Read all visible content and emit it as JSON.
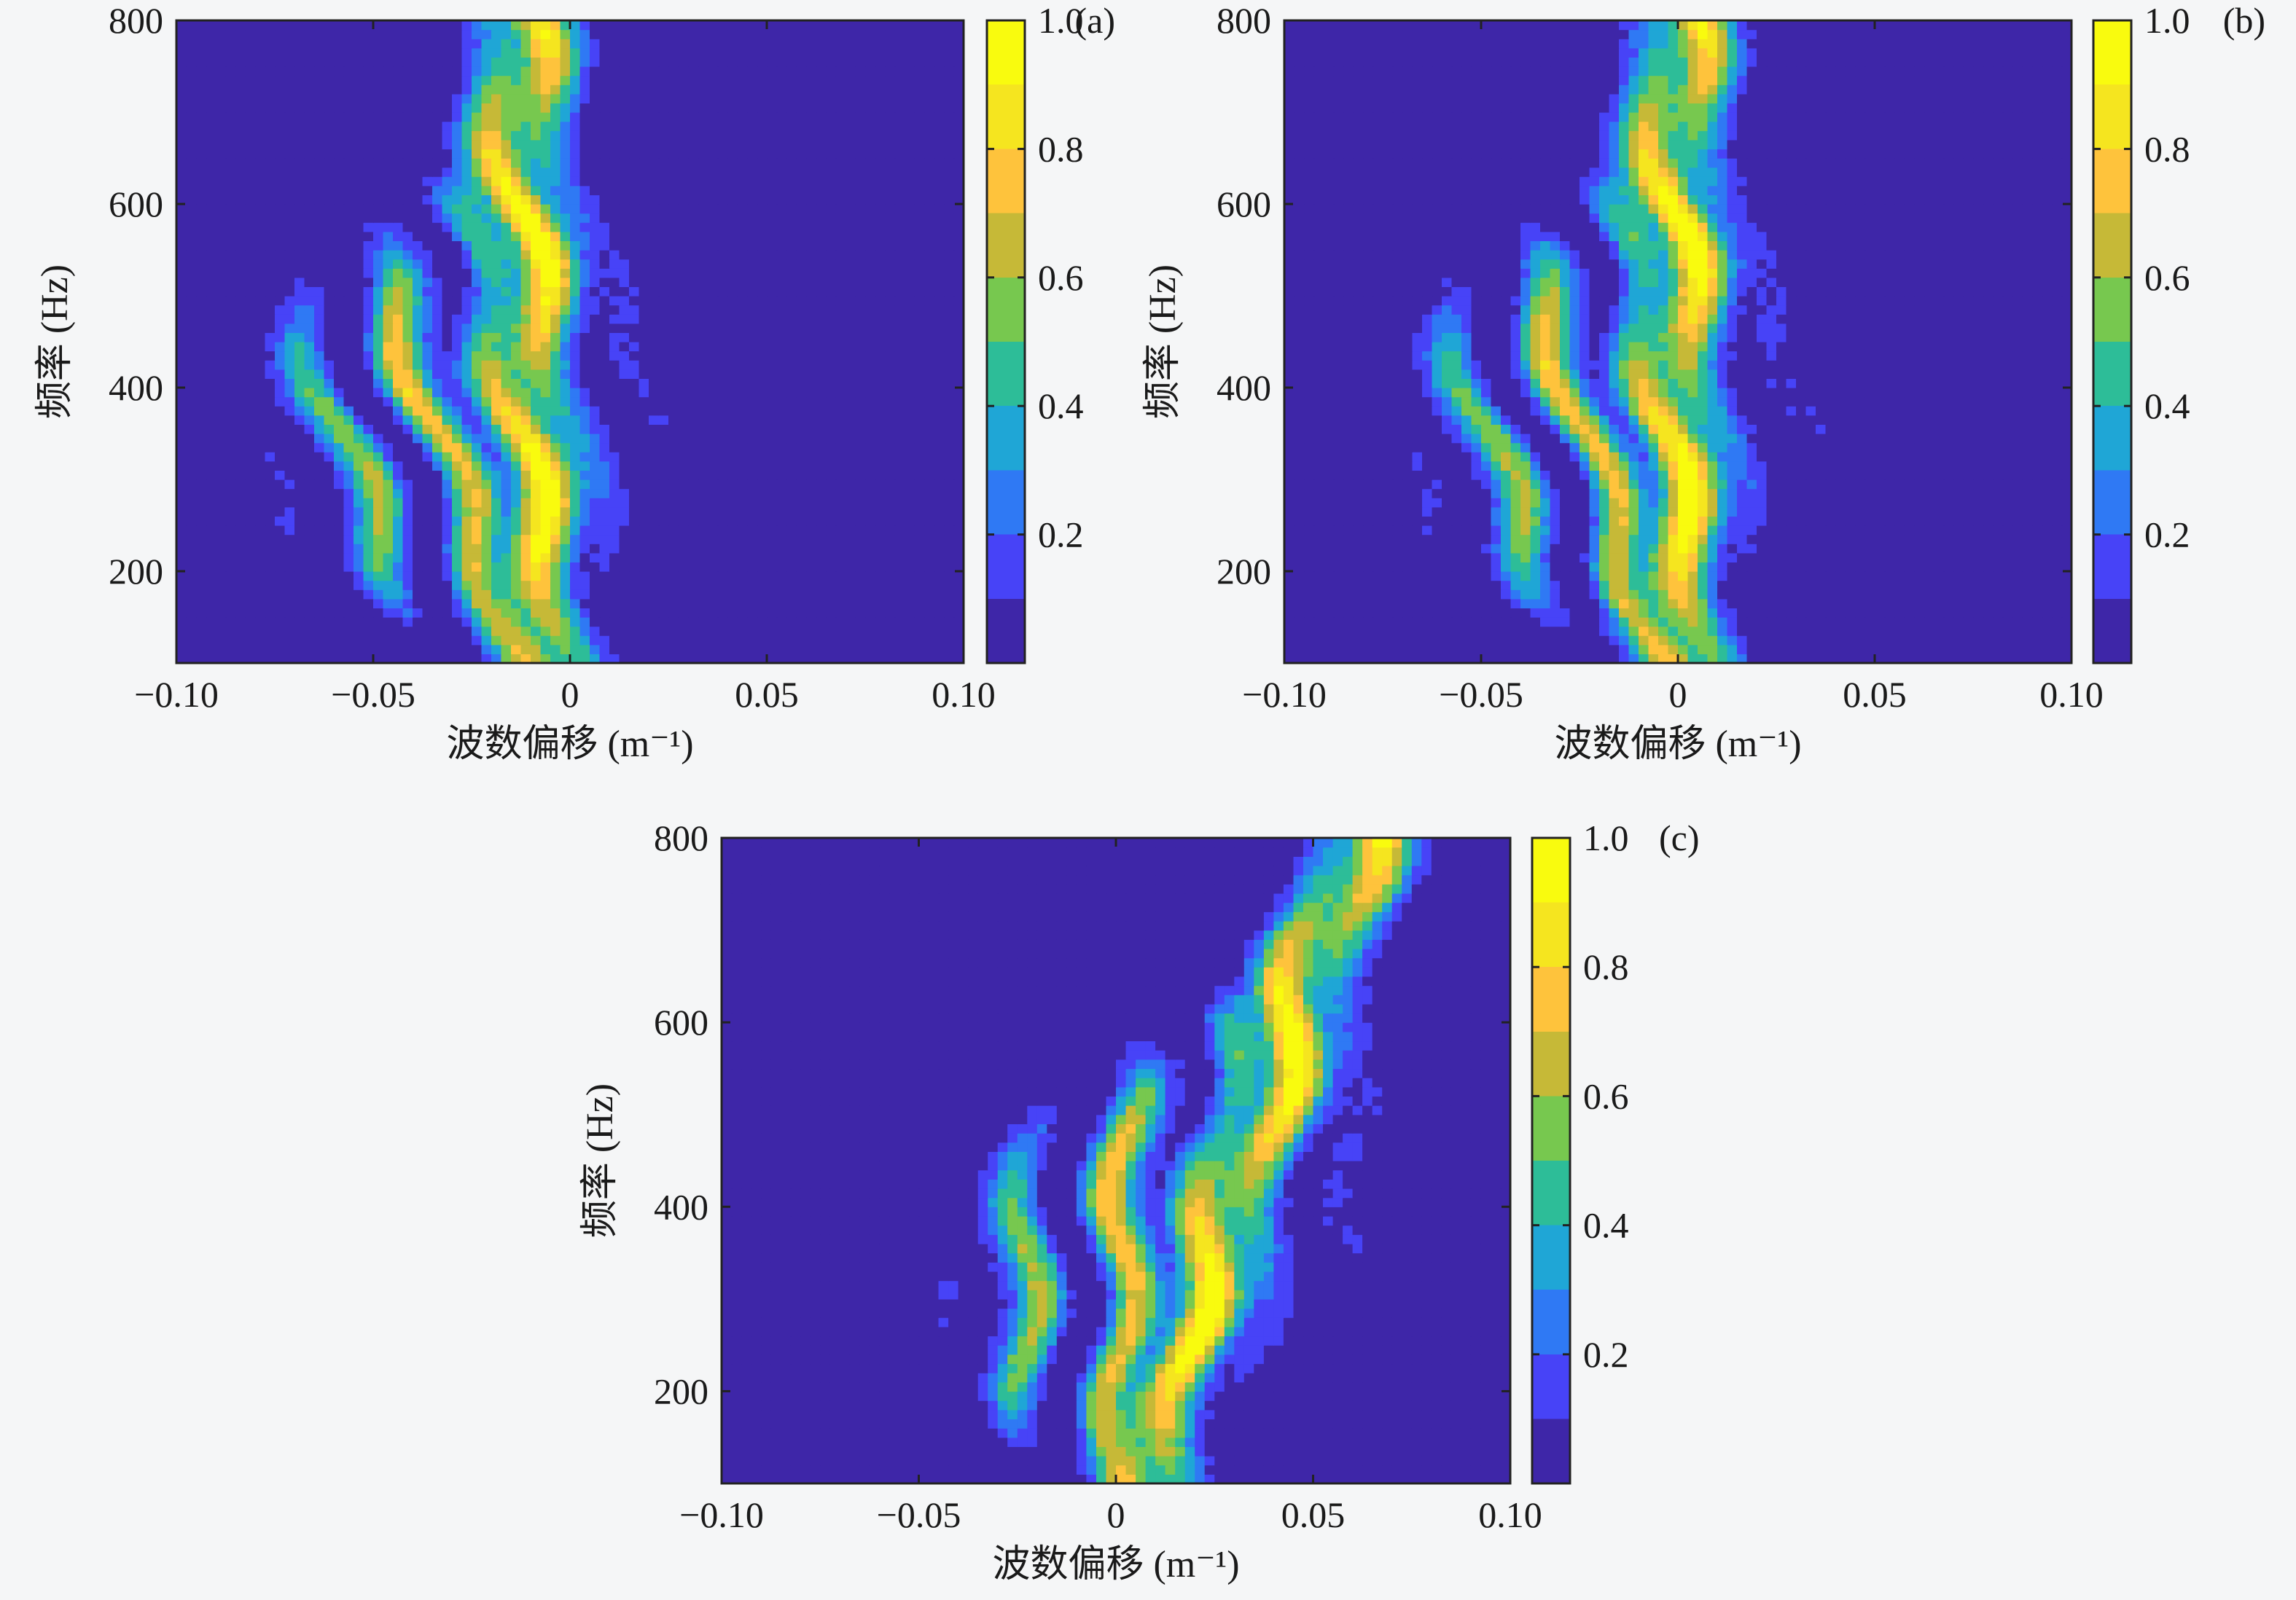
{
  "colormap": [
    "#3e26a8",
    "#4743f7",
    "#2f79f4",
    "#1fa6d6",
    "#2dbd98",
    "#77c84f",
    "#c6b937",
    "#fec33c",
    "#f5e51f",
    "#f9fb0e"
  ],
  "background_color": "#f5f6f7",
  "colorbar": {
    "range": [
      0,
      1.0
    ],
    "tick_values": [
      0.2,
      0.4,
      0.6,
      0.8,
      1.0
    ],
    "tick_labels": [
      "0.2",
      "0.4",
      "0.6",
      "0.8",
      "1.0"
    ]
  },
  "chart_data": [
    {
      "type": "heatmap",
      "panel_label": "(a)",
      "xlabel": "波数偏移 (m⁻¹)",
      "ylabel": "频率 (Hz)",
      "xlim": [
        -0.1,
        0.1
      ],
      "ylim": [
        100,
        800
      ],
      "x_ticks": [
        -0.1,
        -0.05,
        0,
        0.05,
        0.1
      ],
      "x_tick_labels": [
        "−0.10",
        "−0.05",
        "0",
        "0.05",
        "0.10"
      ],
      "y_ticks": [
        200,
        400,
        600,
        800
      ],
      "y_tick_labels": [
        "200",
        "400",
        "600",
        "800"
      ],
      "colorbar_range": [
        0,
        1.0
      ],
      "ridge_center_at_100Hz": -0.008,
      "ridge_center_at_800Hz": -0.013,
      "approx_peak_wavenumber_by_frequency": [
        {
          "frequency": 130,
          "wavenumber": -0.01
        },
        {
          "frequency": 290,
          "wavenumber": -0.05
        },
        {
          "frequency": 400,
          "wavenumber": -0.07
        },
        {
          "frequency": 520,
          "wavenumber": -0.025
        },
        {
          "frequency": 700,
          "wavenumber": -0.015
        }
      ]
    },
    {
      "type": "heatmap",
      "panel_label": "(b)",
      "xlabel": "波数偏移 (m⁻¹)",
      "ylabel": "频率 (Hz)",
      "xlim": [
        -0.1,
        0.1
      ],
      "ylim": [
        100,
        800
      ],
      "x_ticks": [
        -0.1,
        -0.05,
        0,
        0.05,
        0.1
      ],
      "x_tick_labels": [
        "−0.10",
        "−0.05",
        "0",
        "0.05",
        "0.10"
      ],
      "y_ticks": [
        200,
        400,
        600,
        800
      ],
      "y_tick_labels": [
        "200",
        "400",
        "600",
        "800"
      ],
      "colorbar_range": [
        0,
        1.0
      ],
      "ridge_center_at_100Hz": 0.0,
      "ridge_center_at_800Hz": 0.0,
      "approx_peak_wavenumber_by_frequency": [
        {
          "frequency": 130,
          "wavenumber": 0.0
        },
        {
          "frequency": 290,
          "wavenumber": -0.04
        },
        {
          "frequency": 400,
          "wavenumber": -0.06
        },
        {
          "frequency": 520,
          "wavenumber": -0.015
        },
        {
          "frequency": 700,
          "wavenumber": 0.0
        }
      ]
    },
    {
      "type": "heatmap",
      "panel_label": "(c)",
      "xlabel": "波数偏移 (m⁻¹)",
      "ylabel": "频率 (Hz)",
      "xlim": [
        -0.1,
        0.1
      ],
      "ylim": [
        100,
        800
      ],
      "x_ticks": [
        -0.1,
        -0.05,
        0,
        0.05,
        0.1
      ],
      "x_tick_labels": [
        "−0.10",
        "−0.05",
        "0",
        "0.05",
        "0.10"
      ],
      "y_ticks": [
        200,
        400,
        600,
        800
      ],
      "y_tick_labels": [
        "200",
        "400",
        "600",
        "800"
      ],
      "colorbar_range": [
        0,
        1.0
      ],
      "ridge_center_at_100Hz": 0.005,
      "ridge_center_at_800Hz": 0.062,
      "approx_peak_wavenumber_by_frequency": [
        {
          "frequency": 130,
          "wavenumber": 0.005
        },
        {
          "frequency": 290,
          "wavenumber": -0.03
        },
        {
          "frequency": 400,
          "wavenumber": -0.035
        },
        {
          "frequency": 520,
          "wavenumber": 0.025
        },
        {
          "frequency": 700,
          "wavenumber": 0.05
        }
      ]
    }
  ]
}
